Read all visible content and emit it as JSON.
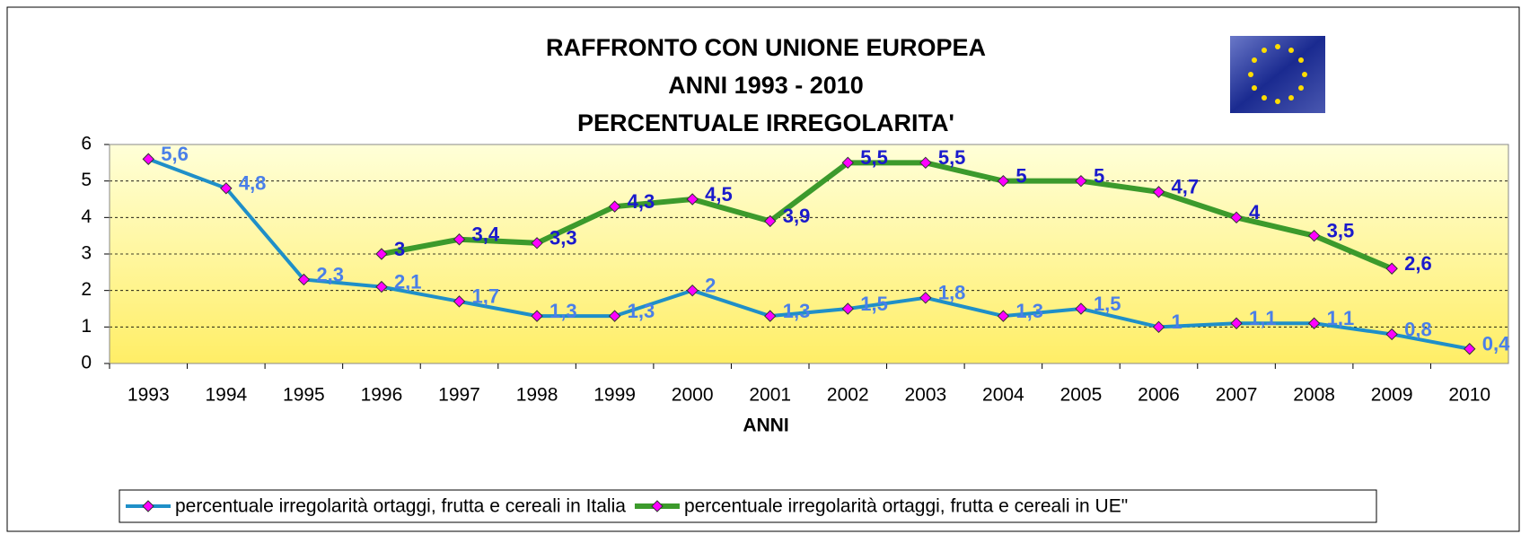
{
  "chart_data": {
    "type": "line",
    "title": [
      "RAFFRONTO CON UNIONE EUROPEA",
      "ANNI 1993 - 2010",
      "PERCENTUALE IRREGOLARITA'"
    ],
    "x_label": "ANNI",
    "categories": [
      "1993",
      "1994",
      "1995",
      "1996",
      "1997",
      "1998",
      "1999",
      "2000",
      "2001",
      "2002",
      "2003",
      "2004",
      "2005",
      "2006",
      "2007",
      "2008",
      "2009",
      "2010"
    ],
    "series": [
      {
        "name": "percentuale irregolarità ortaggi, frutta e cereali in Italia",
        "color": "#1f8fc8",
        "marker_color": "#ff00ff",
        "label_color": "#4a7fe8",
        "values": [
          5.6,
          4.8,
          2.3,
          2.1,
          1.7,
          1.3,
          1.3,
          2,
          1.3,
          1.5,
          1.8,
          1.3,
          1.5,
          1,
          1.1,
          1.1,
          0.8,
          0.4
        ],
        "value_labels": [
          "5,6",
          "4,8",
          "2,3",
          "2,1",
          "1,7",
          "1,3",
          "1,3",
          "2",
          "1,3",
          "1,5",
          "1,8",
          "1,3",
          "1,5",
          "1",
          "1,1",
          "1,1",
          "0,8",
          "0,4"
        ]
      },
      {
        "name": "percentuale irregolarità ortaggi, frutta e cereali in UE\"",
        "color": "#3c9a2c",
        "marker_color": "#ff00ff",
        "label_color": "#1a1acc",
        "values": [
          null,
          null,
          null,
          3,
          3.4,
          3.3,
          4.3,
          4.5,
          3.9,
          5.5,
          5.5,
          5,
          5,
          4.7,
          4,
          3.5,
          2.6,
          null
        ],
        "value_labels": [
          null,
          null,
          null,
          "3",
          "3,4",
          "3,3",
          "4,3",
          "4,5",
          "3,9",
          "5,5",
          "5,5",
          "5",
          "5",
          "4,7",
          "4",
          "3,5",
          "2,6",
          null
        ]
      }
    ],
    "ylim": [
      0,
      6
    ],
    "yticks": [
      0,
      1,
      2,
      3,
      4,
      5,
      6
    ],
    "grid": true
  }
}
